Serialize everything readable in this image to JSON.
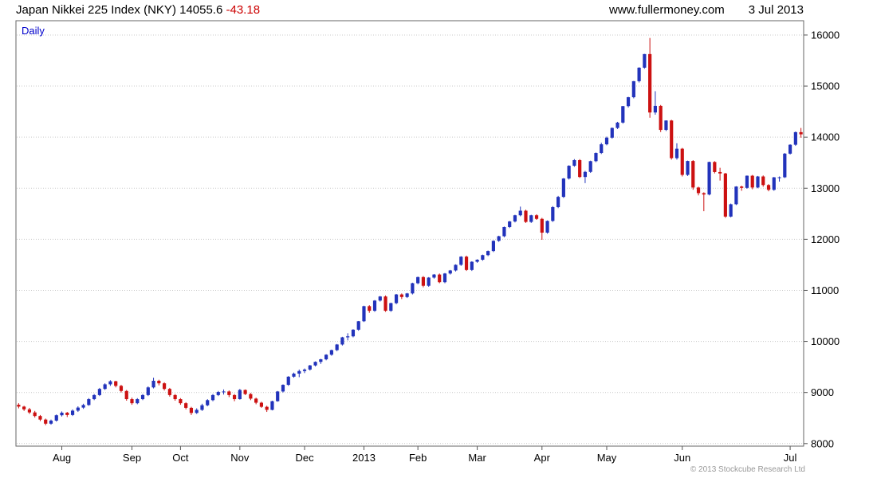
{
  "header": {
    "title": "Japan Nikkei 225 Index (NKY) 14055.6",
    "change": "-43.18",
    "site": "www.fullermoney.com",
    "date": "3 Jul 2013"
  },
  "chart_label": "Daily",
  "footer": {
    "copyright": "© 2013 Stockcube Research Ltd"
  },
  "chart_data": {
    "type": "candlestick",
    "title": "Japan Nikkei 225 Index (NKY)",
    "interval": "Daily",
    "last_price": 14055.6,
    "last_change": -43.18,
    "ylim": [
      7950,
      16280
    ],
    "yticks": [
      8000,
      9000,
      10000,
      11000,
      12000,
      13000,
      14000,
      15000,
      16000
    ],
    "grid": "dotted-horizontal",
    "legend": "none",
    "colors": {
      "up": "#2233bb",
      "down": "#cc1111",
      "axis": "#555555",
      "grid": "#c9c9c9",
      "border": "#666666"
    },
    "months": [
      {
        "label": "Aug",
        "i": 8
      },
      {
        "label": "Sep",
        "i": 21
      },
      {
        "label": "Oct",
        "i": 30
      },
      {
        "label": "Nov",
        "i": 41
      },
      {
        "label": "Dec",
        "i": 53
      },
      {
        "label": "2013",
        "i": 64
      },
      {
        "label": "Feb",
        "i": 74
      },
      {
        "label": "Mar",
        "i": 85
      },
      {
        "label": "Apr",
        "i": 97
      },
      {
        "label": "May",
        "i": 109
      },
      {
        "label": "Jun",
        "i": 123
      },
      {
        "label": "Jul",
        "i": 143
      }
    ],
    "candles": [
      [
        8760,
        8790,
        8690,
        8724
      ],
      [
        8724,
        8740,
        8640,
        8670
      ],
      [
        8670,
        8700,
        8580,
        8610
      ],
      [
        8610,
        8640,
        8510,
        8540
      ],
      [
        8540,
        8560,
        8440,
        8470
      ],
      [
        8470,
        8490,
        8360,
        8390
      ],
      [
        8390,
        8470,
        8370,
        8450
      ],
      [
        8450,
        8570,
        8430,
        8555
      ],
      [
        8555,
        8630,
        8530,
        8605
      ],
      [
        8605,
        8620,
        8520,
        8560
      ],
      [
        8560,
        8670,
        8540,
        8645
      ],
      [
        8645,
        8730,
        8620,
        8705
      ],
      [
        8705,
        8780,
        8680,
        8755
      ],
      [
        8755,
        8890,
        8740,
        8870
      ],
      [
        8870,
        8970,
        8850,
        8950
      ],
      [
        8950,
        9090,
        8930,
        9070
      ],
      [
        9070,
        9180,
        9050,
        9160
      ],
      [
        9160,
        9240,
        9130,
        9220
      ],
      [
        9220,
        9230,
        9100,
        9130
      ],
      [
        9130,
        9150,
        9000,
        9030
      ],
      [
        9030,
        9050,
        8840,
        8870
      ],
      [
        8870,
        8900,
        8760,
        8790
      ],
      [
        8790,
        8890,
        8770,
        8870
      ],
      [
        8870,
        8970,
        8850,
        8950
      ],
      [
        8950,
        9120,
        8930,
        9100
      ],
      [
        9100,
        9290,
        9080,
        9230
      ],
      [
        9230,
        9250,
        9140,
        9180
      ],
      [
        9180,
        9200,
        9040,
        9070
      ],
      [
        9070,
        9090,
        8920,
        8950
      ],
      [
        8950,
        8970,
        8840,
        8870
      ],
      [
        8870,
        8890,
        8760,
        8790
      ],
      [
        8790,
        8810,
        8670,
        8700
      ],
      [
        8700,
        8720,
        8560,
        8600
      ],
      [
        8600,
        8690,
        8580,
        8660
      ],
      [
        8660,
        8780,
        8640,
        8750
      ],
      [
        8750,
        8870,
        8730,
        8850
      ],
      [
        8850,
        8970,
        8830,
        8950
      ],
      [
        8950,
        9030,
        8930,
        9010
      ],
      [
        9010,
        9060,
        8960,
        9020
      ],
      [
        9020,
        9040,
        8910,
        8950
      ],
      [
        8950,
        8970,
        8830,
        8870
      ],
      [
        8870,
        9070,
        8860,
        9050
      ],
      [
        9050,
        9060,
        8950,
        8970
      ],
      [
        8970,
        8990,
        8850,
        8880
      ],
      [
        8880,
        8900,
        8770,
        8800
      ],
      [
        8800,
        8820,
        8700,
        8720
      ],
      [
        8720,
        8740,
        8620,
        8660
      ],
      [
        8660,
        8840,
        8650,
        8830
      ],
      [
        8830,
        9030,
        8820,
        9020
      ],
      [
        9020,
        9160,
        9000,
        9150
      ],
      [
        9150,
        9320,
        9130,
        9310
      ],
      [
        9310,
        9390,
        9290,
        9370
      ],
      [
        9370,
        9450,
        9300,
        9420
      ],
      [
        9420,
        9470,
        9380,
        9450
      ],
      [
        9450,
        9540,
        9430,
        9530
      ],
      [
        9530,
        9610,
        9510,
        9600
      ],
      [
        9600,
        9660,
        9560,
        9650
      ],
      [
        9650,
        9750,
        9630,
        9740
      ],
      [
        9740,
        9840,
        9720,
        9830
      ],
      [
        9830,
        9950,
        9810,
        9940
      ],
      [
        9940,
        10090,
        9920,
        10080
      ],
      [
        10080,
        10160,
        10020,
        10100
      ],
      [
        10100,
        10240,
        10080,
        10230
      ],
      [
        10230,
        10400,
        10210,
        10395
      ],
      [
        10395,
        10700,
        10380,
        10690
      ],
      [
        10690,
        10710,
        10560,
        10600
      ],
      [
        10600,
        10810,
        10580,
        10800
      ],
      [
        10800,
        10890,
        10780,
        10880
      ],
      [
        10880,
        10900,
        10580,
        10600
      ],
      [
        10600,
        10760,
        10580,
        10750
      ],
      [
        10750,
        10930,
        10730,
        10920
      ],
      [
        10920,
        10940,
        10830,
        10870
      ],
      [
        10870,
        10950,
        10850,
        10940
      ],
      [
        10940,
        11150,
        10920,
        11140
      ],
      [
        11140,
        11270,
        11120,
        11260
      ],
      [
        11260,
        11280,
        11060,
        11090
      ],
      [
        11090,
        11260,
        11070,
        11250
      ],
      [
        11250,
        11320,
        11230,
        11310
      ],
      [
        11310,
        11330,
        11140,
        11160
      ],
      [
        11160,
        11340,
        11140,
        11330
      ],
      [
        11330,
        11400,
        11310,
        11390
      ],
      [
        11390,
        11510,
        11370,
        11500
      ],
      [
        11500,
        11670,
        11480,
        11660
      ],
      [
        11660,
        11680,
        11380,
        11400
      ],
      [
        11400,
        11570,
        11380,
        11560
      ],
      [
        11560,
        11610,
        11540,
        11600
      ],
      [
        11600,
        11700,
        11580,
        11690
      ],
      [
        11690,
        11780,
        11670,
        11770
      ],
      [
        11770,
        11980,
        11750,
        11970
      ],
      [
        11970,
        12070,
        11950,
        12060
      ],
      [
        12060,
        12250,
        12040,
        12240
      ],
      [
        12240,
        12360,
        12220,
        12350
      ],
      [
        12350,
        12480,
        12330,
        12470
      ],
      [
        12470,
        12640,
        12450,
        12560
      ],
      [
        12560,
        12580,
        12320,
        12340
      ],
      [
        12340,
        12480,
        12320,
        12470
      ],
      [
        12470,
        12490,
        12380,
        12400
      ],
      [
        12400,
        12420,
        11990,
        12130
      ],
      [
        12130,
        12370,
        12110,
        12360
      ],
      [
        12360,
        12650,
        12340,
        12630
      ],
      [
        12630,
        12850,
        12610,
        12830
      ],
      [
        12830,
        13200,
        12810,
        13190
      ],
      [
        13190,
        13450,
        13170,
        13440
      ],
      [
        13440,
        13570,
        13420,
        13550
      ],
      [
        13550,
        13570,
        13200,
        13220
      ],
      [
        13220,
        13340,
        13100,
        13320
      ],
      [
        13320,
        13540,
        13300,
        13530
      ],
      [
        13530,
        13700,
        13510,
        13690
      ],
      [
        13690,
        13890,
        13670,
        13860
      ],
      [
        13860,
        14010,
        13840,
        13990
      ],
      [
        13990,
        14190,
        13970,
        14180
      ],
      [
        14180,
        14300,
        14160,
        14285
      ],
      [
        14285,
        14610,
        14265,
        14607
      ],
      [
        14607,
        14790,
        14580,
        14782
      ],
      [
        14782,
        15100,
        14760,
        15096
      ],
      [
        15096,
        15370,
        15070,
        15360
      ],
      [
        15360,
        15630,
        15340,
        15627
      ],
      [
        15627,
        15942,
        14380,
        14483
      ],
      [
        14483,
        14900,
        14440,
        14612
      ],
      [
        14612,
        14630,
        14100,
        14142
      ],
      [
        14142,
        14330,
        14120,
        14326
      ],
      [
        14326,
        14340,
        13560,
        13589
      ],
      [
        13589,
        13880,
        13560,
        13774
      ],
      [
        13774,
        13790,
        13230,
        13261
      ],
      [
        13261,
        13540,
        13240,
        13533
      ],
      [
        13533,
        13550,
        12970,
        13014
      ],
      [
        13014,
        13030,
        12860,
        12904
      ],
      [
        12904,
        12920,
        12550,
        12877
      ],
      [
        12877,
        13520,
        12860,
        13514
      ],
      [
        13514,
        13530,
        13290,
        13317
      ],
      [
        13317,
        13400,
        13150,
        13289
      ],
      [
        13289,
        13300,
        12420,
        12445
      ],
      [
        12445,
        12700,
        12430,
        12686
      ],
      [
        12686,
        13040,
        12670,
        13033
      ],
      [
        13033,
        13050,
        12950,
        13007
      ],
      [
        13007,
        13250,
        12990,
        13245
      ],
      [
        13245,
        13260,
        12980,
        13014
      ],
      [
        13014,
        13240,
        13000,
        13230
      ],
      [
        13230,
        13250,
        13030,
        13062
      ],
      [
        13062,
        13080,
        12940,
        12969
      ],
      [
        12969,
        13220,
        12950,
        13213
      ],
      [
        13213,
        13230,
        13130,
        13214
      ],
      [
        13214,
        13690,
        13200,
        13677
      ],
      [
        13677,
        13860,
        13660,
        13852
      ],
      [
        13852,
        14110,
        13830,
        14098
      ],
      [
        14098,
        14180,
        13990,
        14055.6
      ]
    ]
  }
}
